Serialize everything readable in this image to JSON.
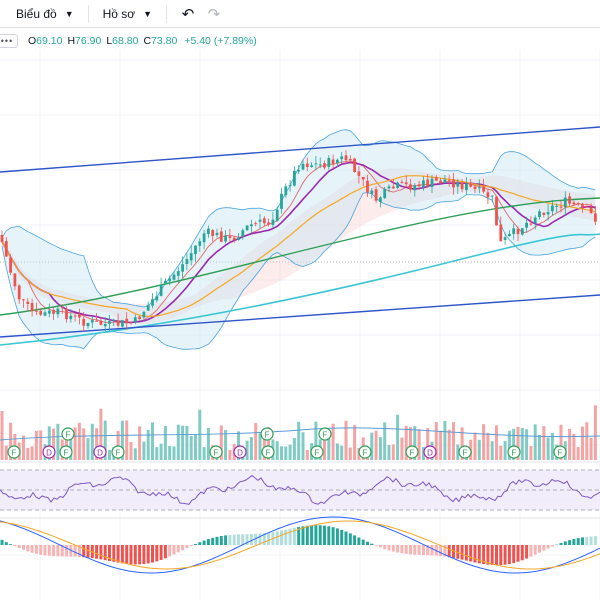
{
  "toolbar": {
    "chart_menu": "Biểu đồ",
    "profile_menu": "Hồ sơ"
  },
  "legend": {
    "open_label": "O",
    "open": "69.10",
    "high_label": "H",
    "high": "76.90",
    "low_label": "L",
    "low": "68.80",
    "close_label": "C",
    "close": "73.80",
    "change": "+5.40 (+7.89%)"
  },
  "colors": {
    "up": "#26a69a",
    "down": "#ef5350",
    "channel": "#2f55c9",
    "ma_fast": "#9c27b0",
    "ma_orange": "#f5a623",
    "ma_green": "#2e9e55",
    "ma_cyan": "#3cc6d4",
    "bollinger_fill": "#c8e6f5",
    "rsi_band": "#ece6f8"
  },
  "events": {
    "financial_label": "F",
    "dividend_label": "D"
  },
  "chart_data": {
    "type": "candlestick",
    "indicators": [
      "bollinger-bands",
      "moving-averages",
      "ichimoku-cloud",
      "volume",
      "rsi",
      "macd"
    ],
    "last_bar": {
      "open": 69.1,
      "high": 76.9,
      "low": 68.8,
      "close": 73.8,
      "change": 5.4,
      "change_pct": 7.89
    },
    "grid": true
  }
}
